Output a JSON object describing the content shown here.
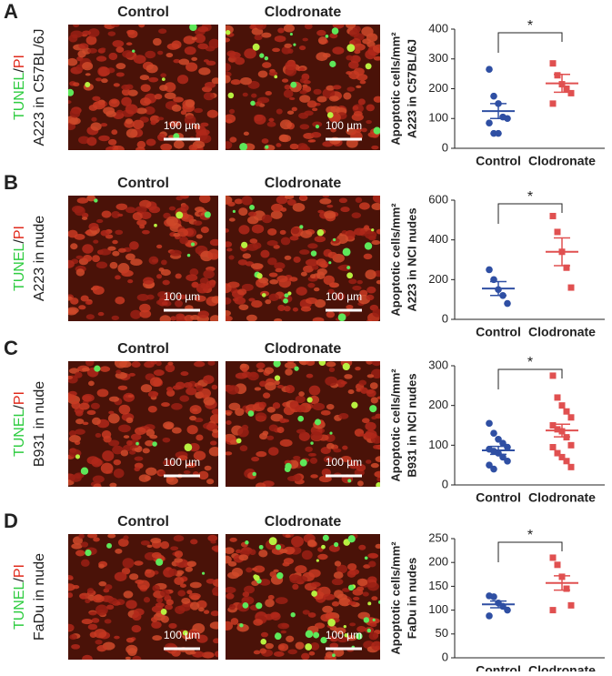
{
  "panels": [
    {
      "label": "A",
      "stain": [
        "TUNEL",
        "/",
        "PI"
      ],
      "model": "A223 in C57BL/6J",
      "image_titles": [
        "Control",
        "Clodronate"
      ],
      "scale_bar": "100 µm"
    },
    {
      "label": "B",
      "stain": [
        "TUNEL",
        "/",
        "PI"
      ],
      "model": "A223 in nude",
      "image_titles": [
        "Control",
        "Clodronate"
      ],
      "scale_bar": "100 µm"
    },
    {
      "label": "C",
      "stain": [
        "TUNEL",
        "/",
        "PI"
      ],
      "model": "B931 in  nude",
      "image_titles": [
        "Control",
        "Clodronate"
      ],
      "scale_bar": "100 µm"
    },
    {
      "label": "D",
      "stain": [
        "TUNEL",
        "/",
        "PI"
      ],
      "model": "FaDu in nude",
      "image_titles": [
        "Control",
        "Clodronate"
      ],
      "scale_bar": "100 µm"
    }
  ],
  "chart_data": [
    {
      "type": "dotplot",
      "y_label": [
        "Apoptotic cells/mm²",
        "A223 in C57BL/6J"
      ],
      "categories": [
        "Control",
        "Clodronate"
      ],
      "annotation": "*",
      "ylim": [
        0,
        400
      ],
      "yticks": [
        0,
        100,
        200,
        300,
        400
      ],
      "groups": [
        {
          "color": "#2f4fa3",
          "values": [
            265,
            175,
            150,
            105,
            100,
            85,
            50,
            50
          ],
          "mean": 125,
          "sem": 25
        },
        {
          "color": "#e05050",
          "values": [
            285,
            245,
            215,
            200,
            185,
            150
          ],
          "mean": 218,
          "sem": 30
        }
      ]
    },
    {
      "type": "dotplot",
      "y_label": [
        "Apoptotic cells/mm²",
        "A223 in NCI nudes"
      ],
      "categories": [
        "Control",
        "Clodronate"
      ],
      "annotation": "*",
      "ylim": [
        0,
        600
      ],
      "yticks": [
        0,
        200,
        400,
        600
      ],
      "groups": [
        {
          "color": "#2f4fa3",
          "values": [
            250,
            200,
            150,
            120,
            80
          ],
          "mean": 155,
          "sem": 35
        },
        {
          "color": "#e05050",
          "values": [
            520,
            440,
            340,
            260,
            160
          ],
          "mean": 340,
          "sem": 70
        }
      ]
    },
    {
      "type": "dotplot",
      "y_label": [
        "Apoptotic cells/mm²",
        "B931 in NCI nudes"
      ],
      "categories": [
        "Control",
        "Clodronate"
      ],
      "annotation": "*",
      "ylim": [
        0,
        300
      ],
      "yticks": [
        0,
        100,
        200,
        300
      ],
      "groups": [
        {
          "color": "#2f4fa3",
          "values": [
            155,
            130,
            115,
            105,
            95,
            90,
            85,
            80,
            70,
            60,
            50,
            40
          ],
          "mean": 87,
          "sem": 10
        },
        {
          "color": "#e05050",
          "values": [
            275,
            220,
            200,
            185,
            170,
            150,
            140,
            135,
            120,
            100,
            95,
            80,
            70,
            60,
            45
          ],
          "mean": 137,
          "sem": 16
        }
      ]
    },
    {
      "type": "dotplot",
      "y_label": [
        "Apoptotic cells/mm²",
        "FaDu in nudes"
      ],
      "categories": [
        "Control",
        "Clodronate"
      ],
      "annotation": "*",
      "ylim": [
        0,
        250
      ],
      "yticks": [
        0,
        50,
        100,
        150,
        200,
        250
      ],
      "groups": [
        {
          "color": "#2f4fa3",
          "values": [
            130,
            128,
            115,
            108,
            100,
            88
          ],
          "mean": 112,
          "sem": 7
        },
        {
          "color": "#e05050",
          "values": [
            210,
            195,
            170,
            145,
            110,
            100
          ],
          "mean": 157,
          "sem": 15
        }
      ]
    }
  ]
}
